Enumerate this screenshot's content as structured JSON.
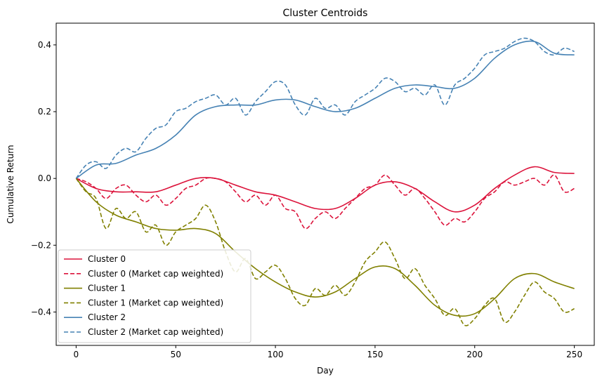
{
  "chart_data": {
    "type": "line",
    "title": "Cluster Centroids",
    "xlabel": "Day",
    "ylabel": "Cumulative Return",
    "xlim": [
      -10,
      260
    ],
    "ylim": [
      -0.5,
      0.465
    ],
    "xticks": [
      0,
      50,
      100,
      150,
      200,
      250
    ],
    "xtick_labels": [
      "0",
      "50",
      "100",
      "150",
      "200",
      "250"
    ],
    "yticks": [
      -0.4,
      -0.2,
      0.0,
      0.2,
      0.4
    ],
    "ytick_labels": [
      "−0.4",
      "−0.2",
      "0.0",
      "0.2",
      "0.4"
    ],
    "grid": false,
    "legend_position": "lower-left",
    "series": [
      {
        "name": "Cluster 0",
        "color": "#dc143c",
        "dash": "solid",
        "x": [
          0,
          10,
          20,
          30,
          40,
          50,
          60,
          70,
          80,
          90,
          100,
          110,
          120,
          130,
          140,
          150,
          160,
          170,
          180,
          190,
          200,
          210,
          220,
          230,
          240,
          250
        ],
        "y": [
          0.0,
          -0.03,
          -0.04,
          -0.04,
          -0.04,
          -0.02,
          0.0,
          0.0,
          -0.02,
          -0.04,
          -0.05,
          -0.07,
          -0.09,
          -0.09,
          -0.06,
          -0.02,
          -0.01,
          -0.03,
          -0.07,
          -0.1,
          -0.08,
          -0.03,
          0.01,
          0.035,
          0.018,
          0.015
        ]
      },
      {
        "name": "Cluster 0 (Market cap weighted)",
        "color": "#dc143c",
        "dash": "dashed",
        "x": [
          0,
          5,
          10,
          15,
          20,
          25,
          30,
          35,
          40,
          45,
          50,
          55,
          60,
          65,
          70,
          75,
          80,
          85,
          90,
          95,
          100,
          105,
          110,
          115,
          120,
          125,
          130,
          135,
          140,
          145,
          150,
          155,
          160,
          165,
          170,
          175,
          180,
          185,
          190,
          195,
          200,
          205,
          210,
          215,
          220,
          225,
          230,
          235,
          240,
          245,
          250
        ],
        "y": [
          0.0,
          -0.01,
          -0.03,
          -0.06,
          -0.03,
          -0.02,
          -0.05,
          -0.07,
          -0.05,
          -0.08,
          -0.06,
          -0.03,
          -0.02,
          0.0,
          0.0,
          -0.01,
          -0.04,
          -0.07,
          -0.05,
          -0.08,
          -0.05,
          -0.09,
          -0.1,
          -0.15,
          -0.12,
          -0.1,
          -0.12,
          -0.09,
          -0.06,
          -0.03,
          -0.02,
          0.01,
          -0.02,
          -0.05,
          -0.03,
          -0.06,
          -0.1,
          -0.14,
          -0.12,
          -0.13,
          -0.1,
          -0.06,
          -0.04,
          -0.01,
          -0.02,
          -0.01,
          0.0,
          -0.02,
          0.01,
          -0.04,
          -0.03
        ]
      },
      {
        "name": "Cluster 1",
        "color": "#808000",
        "dash": "solid",
        "x": [
          0,
          10,
          20,
          30,
          40,
          50,
          60,
          70,
          80,
          90,
          100,
          110,
          120,
          130,
          140,
          150,
          160,
          170,
          180,
          190,
          200,
          210,
          220,
          230,
          240,
          250
        ],
        "y": [
          0.0,
          -0.07,
          -0.11,
          -0.13,
          -0.15,
          -0.155,
          -0.15,
          -0.165,
          -0.22,
          -0.27,
          -0.31,
          -0.34,
          -0.355,
          -0.34,
          -0.3,
          -0.265,
          -0.27,
          -0.32,
          -0.38,
          -0.41,
          -0.405,
          -0.36,
          -0.3,
          -0.285,
          -0.31,
          -0.33
        ]
      },
      {
        "name": "Cluster 1 (Market cap weighted)",
        "color": "#808000",
        "dash": "dashed",
        "x": [
          0,
          5,
          10,
          15,
          20,
          25,
          30,
          35,
          40,
          45,
          50,
          55,
          60,
          65,
          70,
          75,
          80,
          85,
          90,
          95,
          100,
          105,
          110,
          115,
          120,
          125,
          130,
          135,
          140,
          145,
          150,
          155,
          160,
          165,
          170,
          175,
          180,
          185,
          190,
          195,
          200,
          205,
          210,
          215,
          220,
          225,
          230,
          235,
          240,
          245,
          250
        ],
        "y": [
          0.0,
          -0.04,
          -0.06,
          -0.15,
          -0.09,
          -0.12,
          -0.1,
          -0.16,
          -0.14,
          -0.2,
          -0.16,
          -0.14,
          -0.12,
          -0.08,
          -0.13,
          -0.22,
          -0.28,
          -0.24,
          -0.3,
          -0.28,
          -0.26,
          -0.3,
          -0.36,
          -0.38,
          -0.33,
          -0.35,
          -0.32,
          -0.35,
          -0.31,
          -0.25,
          -0.22,
          -0.19,
          -0.24,
          -0.3,
          -0.27,
          -0.32,
          -0.36,
          -0.41,
          -0.39,
          -0.44,
          -0.42,
          -0.38,
          -0.36,
          -0.43,
          -0.4,
          -0.35,
          -0.31,
          -0.34,
          -0.36,
          -0.4,
          -0.39
        ]
      },
      {
        "name": "Cluster 2",
        "color": "#4682b4",
        "dash": "solid",
        "x": [
          0,
          10,
          20,
          30,
          40,
          50,
          60,
          70,
          80,
          90,
          100,
          110,
          120,
          130,
          140,
          150,
          160,
          170,
          180,
          190,
          200,
          210,
          220,
          230,
          240,
          250
        ],
        "y": [
          0.0,
          0.04,
          0.045,
          0.07,
          0.09,
          0.13,
          0.19,
          0.215,
          0.22,
          0.22,
          0.235,
          0.235,
          0.215,
          0.2,
          0.21,
          0.24,
          0.27,
          0.28,
          0.275,
          0.27,
          0.3,
          0.36,
          0.4,
          0.41,
          0.375,
          0.37
        ]
      },
      {
        "name": "Cluster 2 (Market cap weighted)",
        "color": "#4682b4",
        "dash": "dashed",
        "x": [
          0,
          5,
          10,
          15,
          20,
          25,
          30,
          35,
          40,
          45,
          50,
          55,
          60,
          65,
          70,
          75,
          80,
          85,
          90,
          95,
          100,
          105,
          110,
          115,
          120,
          125,
          130,
          135,
          140,
          145,
          150,
          155,
          160,
          165,
          170,
          175,
          180,
          185,
          190,
          195,
          200,
          205,
          210,
          215,
          220,
          225,
          230,
          235,
          240,
          245,
          250
        ],
        "y": [
          0.0,
          0.04,
          0.05,
          0.03,
          0.07,
          0.09,
          0.08,
          0.12,
          0.15,
          0.16,
          0.2,
          0.21,
          0.23,
          0.24,
          0.25,
          0.22,
          0.24,
          0.19,
          0.23,
          0.26,
          0.29,
          0.28,
          0.22,
          0.19,
          0.24,
          0.21,
          0.22,
          0.19,
          0.23,
          0.25,
          0.27,
          0.3,
          0.29,
          0.26,
          0.27,
          0.25,
          0.28,
          0.22,
          0.28,
          0.3,
          0.33,
          0.37,
          0.38,
          0.39,
          0.41,
          0.42,
          0.41,
          0.38,
          0.37,
          0.39,
          0.38
        ]
      }
    ]
  }
}
